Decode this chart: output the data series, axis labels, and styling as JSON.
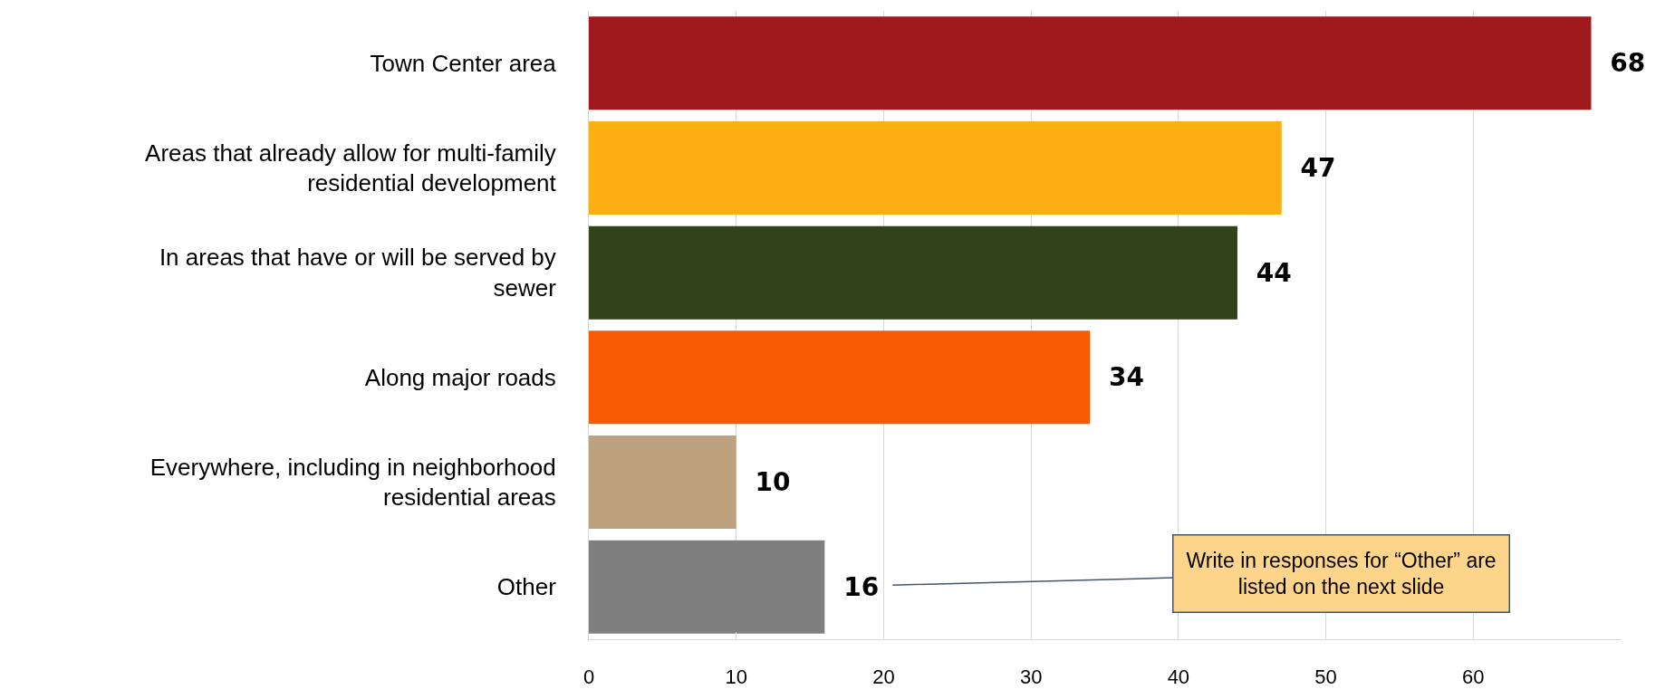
{
  "chart_data": {
    "type": "bar",
    "orientation": "horizontal",
    "categories": [
      "Town Center area",
      "Areas that already allow for multi-family residential development",
      "In areas that have or will be served by sewer",
      "Along major roads",
      "Everywhere, including in neighborhood residential areas",
      "Other"
    ],
    "values": [
      68,
      47,
      44,
      34,
      10,
      16
    ],
    "colors": [
      "#9e1a1c",
      "#fdae12",
      "#31431a",
      "#f95a04",
      "#bea17f",
      "#7f7f7f"
    ],
    "data_labels": true,
    "xlim": [
      0,
      70
    ],
    "xticks": [
      0,
      10,
      20,
      30,
      40,
      50,
      60
    ],
    "grid": "x",
    "legend": false,
    "annotations": [
      {
        "text": "Write in responses for “Other” are listed on the next slide",
        "x": 16,
        "y": "Other"
      }
    ]
  }
}
